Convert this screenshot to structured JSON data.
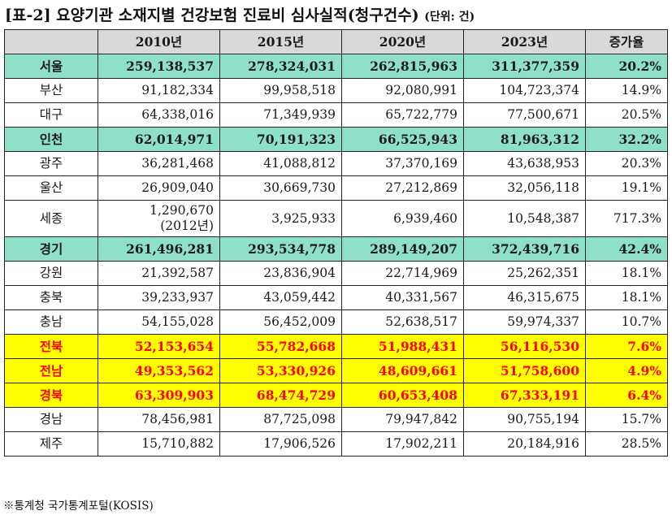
{
  "title": "[표-2] 요양기관 소재지별 건강보험 진료비 심사실적(청구건수)",
  "unit": "(단위: 건)",
  "columns": [
    "",
    "2010년",
    "2015년",
    "2020년",
    "2023년",
    "증가율"
  ],
  "rows": [
    {
      "region": "서울",
      "v2010": "259,138,537",
      "v2015": "278,324,031",
      "v2020": "262,815,963",
      "v2023": "311,377,359",
      "rate": "20.2%"
    },
    {
      "region": "부산",
      "v2010": "91,182,334",
      "v2015": "99,958,518",
      "v2020": "92,080,991",
      "v2023": "104,723,374",
      "rate": "14.9%"
    },
    {
      "region": "대구",
      "v2010": "64,338,016",
      "v2015": "71,349,939",
      "v2020": "65,722,779",
      "v2023": "77,500,671",
      "rate": "20.5%"
    },
    {
      "region": "인천",
      "v2010": "62,014,971",
      "v2015": "70,191,323",
      "v2020": "66,525,943",
      "v2023": "81,963,312",
      "rate": "32.2%"
    },
    {
      "region": "광주",
      "v2010": "36,281,468",
      "v2015": "41,088,812",
      "v2020": "37,370,169",
      "v2023": "43,638,953",
      "rate": "20.3%"
    },
    {
      "region": "울산",
      "v2010": "26,909,040",
      "v2015": "30,669,730",
      "v2020": "27,212,869",
      "v2023": "32,056,118",
      "rate": "19.1%"
    },
    {
      "region": "세종",
      "v2010": "1,290,670",
      "v2010_note": "(2012년)",
      "v2015": "3,925,933",
      "v2020": "6,939,460",
      "v2023": "10,548,387",
      "rate": "717.3%"
    },
    {
      "region": "경기",
      "v2010": "261,496,281",
      "v2015": "293,534,778",
      "v2020": "289,149,207",
      "v2023": "372,439,716",
      "rate": "42.4%"
    },
    {
      "region": "강원",
      "v2010": "21,392,587",
      "v2015": "23,836,904",
      "v2020": "22,714,969",
      "v2023": "25,262,351",
      "rate": "18.1%"
    },
    {
      "region": "충북",
      "v2010": "39,233,937",
      "v2015": "43,059,442",
      "v2020": "40,331,567",
      "v2023": "46,315,675",
      "rate": "18.1%"
    },
    {
      "region": "충남",
      "v2010": "54,155,028",
      "v2015": "56,452,009",
      "v2020": "52,638,517",
      "v2023": "59,974,337",
      "rate": "10.7%"
    },
    {
      "region": "전북",
      "v2010": "52,153,654",
      "v2015": "55,782,668",
      "v2020": "51,988,431",
      "v2023": "56,116,530",
      "rate": "7.6%"
    },
    {
      "region": "전남",
      "v2010": "49,353,562",
      "v2015": "53,330,926",
      "v2020": "48,609,661",
      "v2023": "51,758,600",
      "rate": "4.9%"
    },
    {
      "region": "경북",
      "v2010": "63,309,903",
      "v2015": "68,474,729",
      "v2020": "60,653,408",
      "v2023": "67,333,191",
      "rate": "6.4%"
    },
    {
      "region": "경남",
      "v2010": "78,456,981",
      "v2015": "87,725,098",
      "v2020": "79,947,842",
      "v2023": "90,755,194",
      "rate": "15.7%"
    },
    {
      "region": "제주",
      "v2010": "15,710,882",
      "v2015": "17,906,526",
      "v2020": "17,902,211",
      "v2023": "20,184,916",
      "rate": "28.5%"
    }
  ],
  "colors": {
    "highlight_green": "#8fe0c9",
    "highlight_yellow": "#ffff00",
    "highlight_yellow_text": "#ff0000",
    "header_bg": "#d9d9d9"
  },
  "footnote": "※통계청 국가통계포털(KOSIS)"
}
